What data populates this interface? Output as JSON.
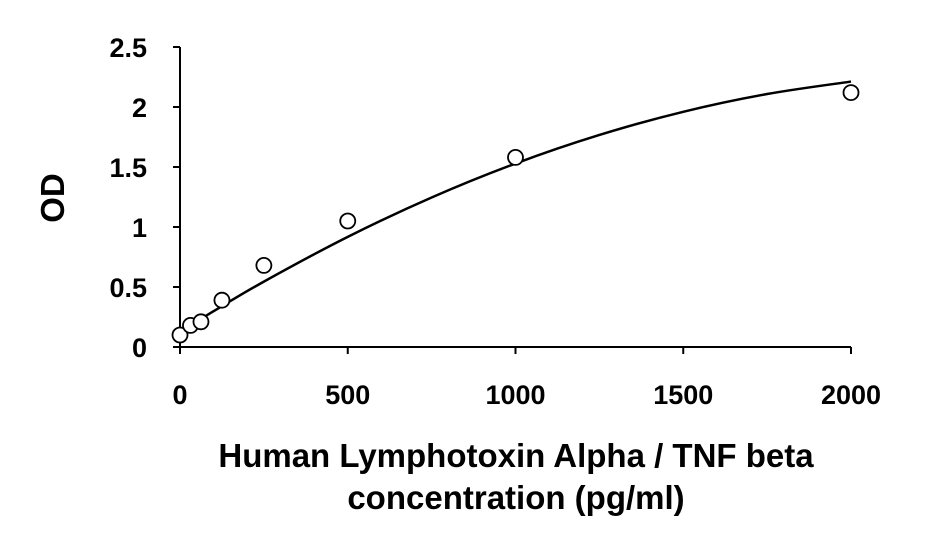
{
  "chart_data": {
    "type": "scatter",
    "title": "",
    "xlabel_lines": [
      "Human Lymphotoxin Alpha / TNF beta",
      "concentration (pg/ml)"
    ],
    "ylabel": "OD",
    "xlim": [
      0,
      2000
    ],
    "ylim": [
      0,
      2.5
    ],
    "x_ticks": [
      0,
      500,
      1000,
      1500,
      2000
    ],
    "x_tick_labels": [
      "0",
      "500",
      "1000",
      "1500",
      "2000"
    ],
    "y_ticks": [
      0,
      0.5,
      1,
      1.5,
      2,
      2.5
    ],
    "y_tick_labels": [
      "0",
      "0.5",
      "1",
      "1.5",
      "2",
      "2.5"
    ],
    "grid": false,
    "legend": "none",
    "series": [
      {
        "marker": "open-circle",
        "x": [
          0,
          31.25,
          62.5,
          125,
          250,
          500,
          1000,
          2000
        ],
        "y": [
          0.1,
          0.18,
          0.21,
          0.39,
          0.68,
          1.05,
          1.58,
          2.12
        ]
      }
    ],
    "fit": {
      "type": "polynomial",
      "degree": 2,
      "x": [
        0,
        100,
        250,
        500,
        750,
        1000,
        1250,
        1500,
        1750,
        2000
      ],
      "y": [
        0.123,
        0.298,
        0.545,
        0.918,
        1.246,
        1.529,
        1.767,
        1.96,
        2.108,
        2.212
      ]
    },
    "colors": {
      "marker_stroke": "#000000",
      "marker_fill": "#ffffff",
      "line": "#000000",
      "axis": "#000000"
    }
  }
}
